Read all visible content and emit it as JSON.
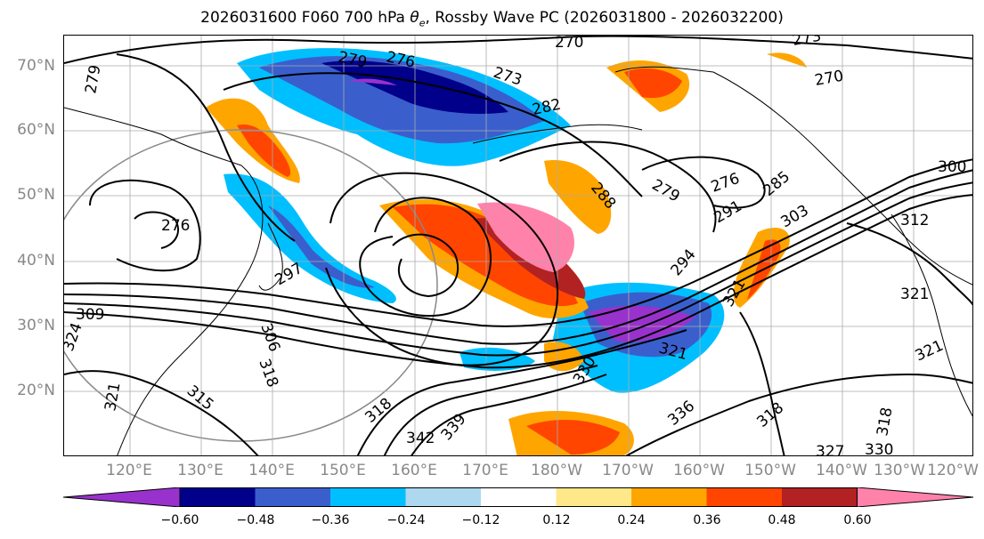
{
  "title_prefix": "2026031600 F060 700 hPa ",
  "title_symbol": "θ",
  "title_subscript": "e",
  "title_suffix": ", Rossby Wave PC (2026031800 - 2026032200)",
  "lat_labels": [
    "70°N",
    "60°N",
    "50°N",
    "40°N",
    "30°N",
    "20°N"
  ],
  "lon_labels": [
    "120°E",
    "130°E",
    "140°E",
    "150°E",
    "160°E",
    "170°E",
    "180°W",
    "170°W",
    "160°W",
    "150°W",
    "140°W",
    "130°W",
    "120°W"
  ],
  "colorbar": {
    "colors": [
      "#9932cc",
      "#00008b",
      "#3a5fcd",
      "#00bfff",
      "#add8f0",
      "#ffffff",
      "#ffe88a",
      "#ffa500",
      "#ff4500",
      "#b22222",
      "#ff82ab"
    ],
    "tick_labels": [
      "−0.60",
      "−0.48",
      "−0.36",
      "−0.24",
      "−0.12",
      "0.12",
      "0.24",
      "0.36",
      "0.48",
      "0.60"
    ]
  },
  "contour_labels": [
    "279",
    "276",
    "273",
    "270",
    "273",
    "270",
    "282",
    "279",
    "276",
    "300",
    "279",
    "276",
    "288",
    "285",
    "291",
    "303",
    "297",
    "294",
    "312",
    "321",
    "321",
    "309",
    "324",
    "306",
    "318",
    "321",
    "315",
    "318",
    "339",
    "342",
    "330",
    "321",
    "336",
    "318",
    "327",
    "330",
    "318",
    "321"
  ],
  "fill_colors": {
    "purple": "#9932cc",
    "navy": "#00008b",
    "blue": "#3a5fcd",
    "cyan": "#00bfff",
    "lightblue": "#add8f0",
    "yellow": "#ffe88a",
    "orange": "#ffa500",
    "red": "#ff4500",
    "darkred": "#b22222",
    "pink": "#ff82ab"
  }
}
